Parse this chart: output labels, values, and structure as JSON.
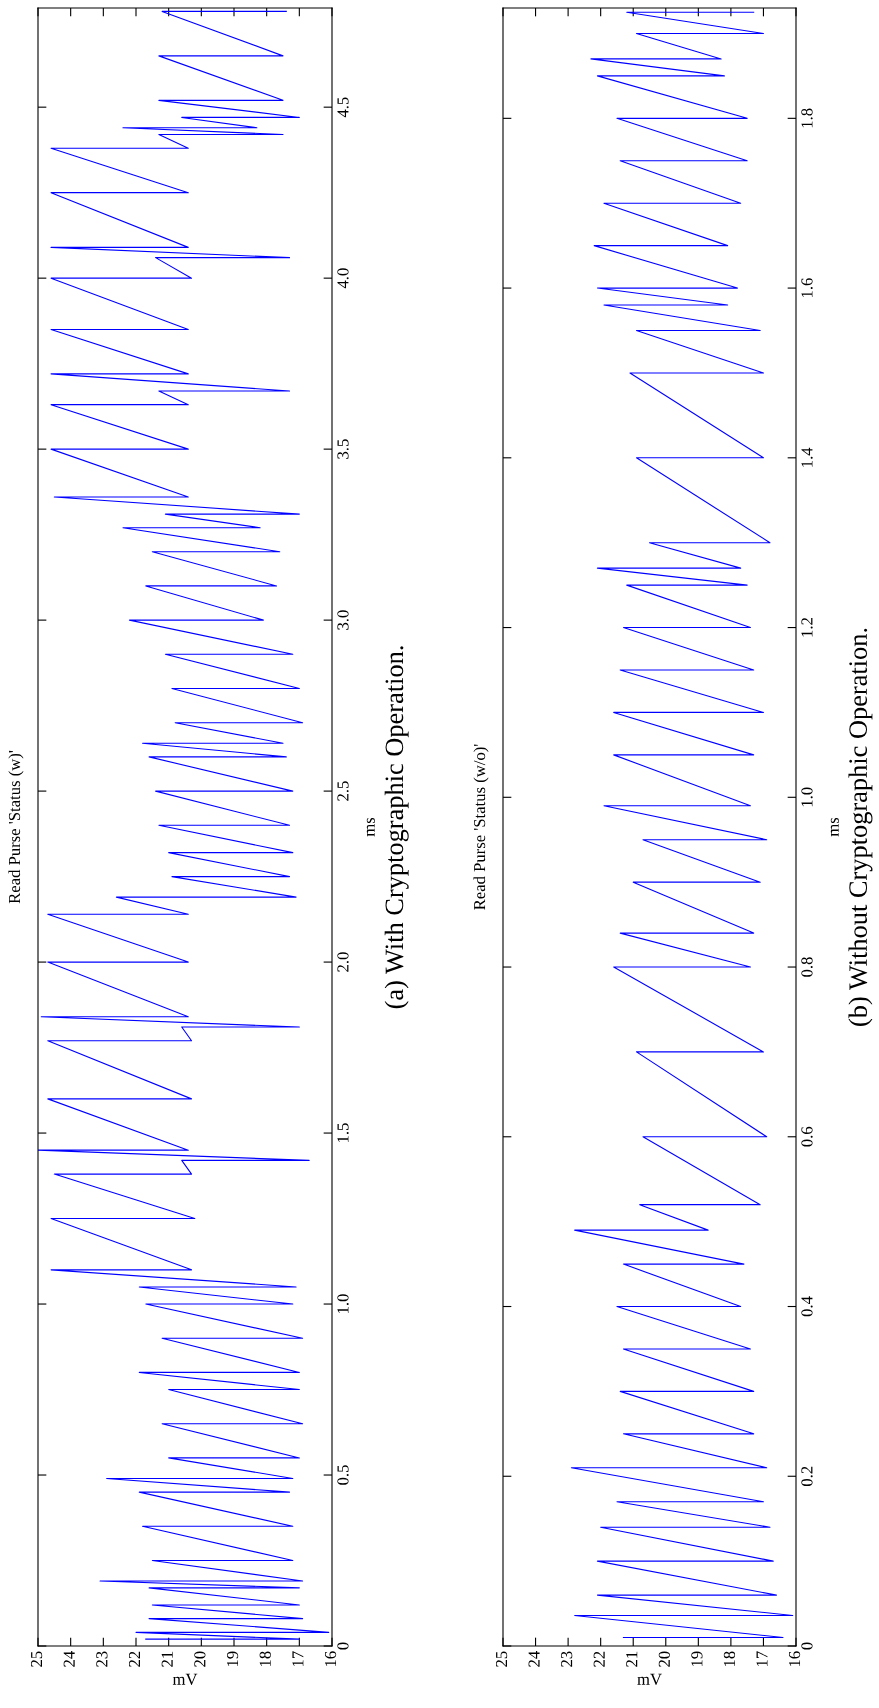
{
  "chart_data": [
    {
      "type": "line",
      "title": "Read Purse 'Status (w)'",
      "xlabel": "mV",
      "ylabel": "ms",
      "annotations": [
        "(a) With Cryptographic Operation."
      ],
      "x": [
        21.7,
        17.0,
        22.0,
        16.1,
        21.6,
        16.9,
        21.5,
        17.0,
        21.6,
        17.0,
        23.1,
        16.9,
        21.5,
        17.2,
        21.8,
        17.2,
        21.9,
        17.3,
        22.9,
        17.2,
        21.0,
        17.0,
        21.2,
        16.9,
        21.0,
        17.0,
        21.9,
        17.0,
        21.2,
        16.9,
        21.7,
        17.2,
        21.9,
        17.1,
        24.6,
        20.3,
        24.6,
        20.2,
        24.5,
        20.3,
        20.6,
        16.7,
        25.0,
        20.4,
        24.7,
        20.3,
        24.7,
        20.3,
        20.6,
        17.0,
        24.9,
        20.4,
        24.7,
        20.4,
        24.7,
        20.4,
        22.6,
        17.1,
        20.9,
        17.3,
        21.0,
        17.2,
        21.3,
        17.3,
        21.4,
        17.2,
        21.6,
        17.4,
        21.8,
        17.5,
        20.8,
        16.9,
        20.9,
        17.0,
        21.1,
        17.2,
        22.2,
        18.1,
        21.7,
        17.7,
        21.5,
        17.6,
        22.4,
        18.2,
        21.1,
        17.0,
        24.5,
        20.4,
        24.6,
        20.4,
        24.6,
        20.4,
        21.3,
        17.3,
        24.6,
        20.4,
        24.6,
        20.4,
        24.6,
        20.3,
        21.4,
        17.3,
        24.6,
        20.4,
        24.6,
        20.4,
        24.6,
        20.4,
        21.3,
        17.5,
        22.4,
        18.3,
        20.6,
        17.0,
        21.3,
        17.5,
        21.3,
        17.5,
        21.2,
        17.4
      ],
      "series": [
        {
          "color": "#0000ff",
          "values": [
            0.02,
            0.02,
            0.04,
            0.04,
            0.08,
            0.08,
            0.12,
            0.12,
            0.17,
            0.17,
            0.19,
            0.19,
            0.25,
            0.25,
            0.35,
            0.35,
            0.45,
            0.45,
            0.49,
            0.49,
            0.55,
            0.55,
            0.65,
            0.65,
            0.75,
            0.75,
            0.8,
            0.8,
            0.9,
            0.9,
            1.0,
            1.0,
            1.05,
            1.05,
            1.1,
            1.1,
            1.25,
            1.25,
            1.38,
            1.38,
            1.42,
            1.42,
            1.45,
            1.45,
            1.6,
            1.6,
            1.77,
            1.77,
            1.81,
            1.81,
            1.84,
            1.84,
            2.0,
            2.0,
            2.14,
            2.14,
            2.19,
            2.19,
            2.25,
            2.25,
            2.32,
            2.32,
            2.4,
            2.4,
            2.5,
            2.5,
            2.6,
            2.6,
            2.64,
            2.64,
            2.7,
            2.7,
            2.8,
            2.8,
            2.9,
            2.9,
            3.0,
            3.0,
            3.1,
            3.1,
            3.2,
            3.2,
            3.27,
            3.27,
            3.31,
            3.31,
            3.36,
            3.36,
            3.5,
            3.5,
            3.63,
            3.63,
            3.67,
            3.67,
            3.72,
            3.72,
            3.85,
            3.85,
            4.0,
            4.0,
            4.06,
            4.06,
            4.09,
            4.09,
            4.25,
            4.25,
            4.38,
            4.38,
            4.42,
            4.42,
            4.44,
            4.44,
            4.47,
            4.47,
            4.52,
            4.52,
            4.65,
            4.65,
            4.78,
            4.78
          ]
        }
      ],
      "xlim": [
        25,
        16
      ],
      "xticks": [
        16,
        17,
        18,
        19,
        20,
        21,
        22,
        23,
        24,
        25
      ],
      "ylim": [
        0,
        4.79
      ],
      "yticks": [
        0,
        0.5,
        {
          "value": 1,
          "label": "1.0"
        },
        1.5,
        {
          "value": 2,
          "label": "2.0"
        },
        2.5,
        {
          "value": 3,
          "label": "3.0"
        },
        3.5,
        {
          "value": 4,
          "label": "4.0"
        },
        4.5
      ]
    },
    {
      "type": "line",
      "title": "Read Purse 'Status (w/o)'",
      "xlabel": "mV",
      "ylabel": "ms",
      "annotations": [
        "(b) Without Cryptographic Operation."
      ],
      "x": [
        21.3,
        16.4,
        22.8,
        16.1,
        22.1,
        16.6,
        22.1,
        16.7,
        22.0,
        16.8,
        21.5,
        17.0,
        22.9,
        16.9,
        21.3,
        17.3,
        21.4,
        17.3,
        21.3,
        17.4,
        21.5,
        17.7,
        21.3,
        17.6,
        22.8,
        18.7,
        20.8,
        17.1,
        20.7,
        16.9,
        20.9,
        17.0,
        21.6,
        17.4,
        21.4,
        17.3,
        21.0,
        17.1,
        20.7,
        16.9,
        21.9,
        17.4,
        21.6,
        17.3,
        21.6,
        17.0,
        21.4,
        17.3,
        21.3,
        17.4,
        21.2,
        17.5,
        22.1,
        17.7,
        20.5,
        16.8,
        20.9,
        17.0,
        21.1,
        17.0,
        20.9,
        17.1,
        21.9,
        18.1,
        22.1,
        17.8,
        22.2,
        18.1,
        21.9,
        17.7,
        21.4,
        17.5,
        21.5,
        17.5,
        22.1,
        18.2,
        22.3,
        18.3,
        20.9,
        17.0,
        21.2,
        17.3
      ],
      "series": [
        {
          "color": "#0000ff",
          "values": [
            0.01,
            0.01,
            0.036,
            0.036,
            0.06,
            0.06,
            0.1,
            0.1,
            0.14,
            0.14,
            0.17,
            0.17,
            0.21,
            0.21,
            0.25,
            0.25,
            0.3,
            0.3,
            0.35,
            0.35,
            0.4,
            0.4,
            0.45,
            0.45,
            0.49,
            0.49,
            0.52,
            0.52,
            0.6,
            0.6,
            0.7,
            0.7,
            0.8,
            0.8,
            0.84,
            0.84,
            0.9,
            0.9,
            0.95,
            0.95,
            0.99,
            0.99,
            1.05,
            1.05,
            1.1,
            1.1,
            1.15,
            1.15,
            1.2,
            1.2,
            1.25,
            1.25,
            1.27,
            1.27,
            1.3,
            1.3,
            1.4,
            1.4,
            1.5,
            1.5,
            1.55,
            1.55,
            1.58,
            1.58,
            1.6,
            1.6,
            1.65,
            1.65,
            1.7,
            1.7,
            1.75,
            1.75,
            1.8,
            1.8,
            1.85,
            1.85,
            1.87,
            1.87,
            1.9,
            1.9,
            1.925,
            1.925
          ]
        }
      ],
      "xlim": [
        25,
        16
      ],
      "xticks": [
        16,
        17,
        18,
        19,
        20,
        21,
        22,
        23,
        24,
        25
      ],
      "ylim": [
        0,
        1.93
      ],
      "yticks": [
        0,
        0.2,
        0.4,
        0.6,
        0.8,
        {
          "value": 1,
          "label": "1.0"
        },
        1.2,
        1.4,
        1.6,
        1.8
      ]
    }
  ]
}
